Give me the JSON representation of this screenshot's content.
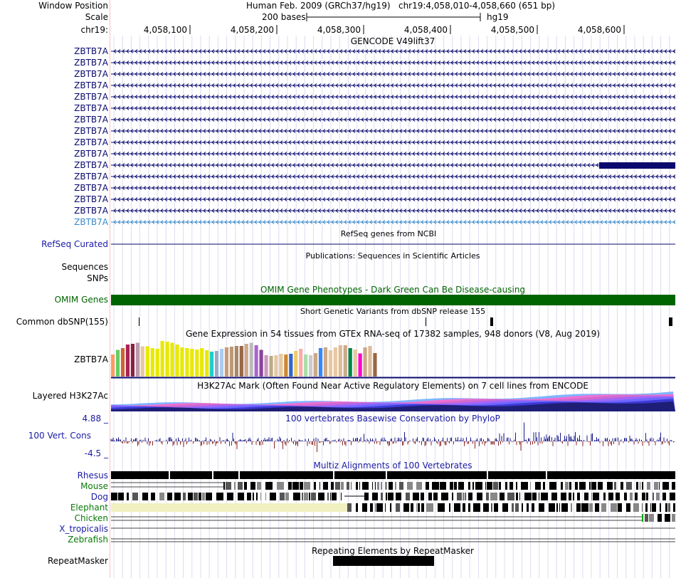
{
  "header": {
    "window_position_label": "Window Position",
    "scale_label": "Scale",
    "chrom_label": "chr19:",
    "assembly": "Human Feb. 2009 (GRCh37/hg19)",
    "position": "chr19:4,058,010-4,058,660 (651 bp)",
    "scale_text": "200 bases",
    "db": "hg19",
    "ruler_ticks": [
      "4,058,100",
      "4,058,200",
      "4,058,300",
      "4,058,400",
      "4,058,500",
      "4,058,600"
    ]
  },
  "gencode": {
    "title": "GENCODE V49lift37",
    "items": [
      "ZBTB7A",
      "ZBTB7A",
      "ZBTB7A",
      "ZBTB7A",
      "ZBTB7A",
      "ZBTB7A",
      "ZBTB7A",
      "ZBTB7A",
      "ZBTB7A",
      "ZBTB7A",
      "ZBTB7A",
      "ZBTB7A",
      "ZBTB7A",
      "ZBTB7A",
      "ZBTB7A",
      "ZBTB7A"
    ]
  },
  "refseq": {
    "title": "RefSeq genes from NCBI",
    "label": "RefSeq Curated"
  },
  "publications": {
    "title": "Publications: Sequences in Scientific Articles",
    "seq_label": "Sequences",
    "snp_label": "SNPs"
  },
  "omim": {
    "title": "OMIM Gene Phenotypes - Dark Green Can Be Disease-causing",
    "label": "OMIM Genes"
  },
  "dbsnp": {
    "title": "Short Genetic Variants from dbSNP release 155",
    "label": "Common dbSNP(155)"
  },
  "gtex": {
    "title": "Gene Expression in 54 tissues from GTEx RNA-seq of 17382 samples, 948 donors (V8, Aug 2019)",
    "label": "ZBTB7A",
    "levels": [
      0.62,
      0.75,
      0.8,
      0.9,
      0.92,
      0.95,
      0.85,
      0.85,
      0.8,
      0.78,
      1.0,
      0.98,
      0.95,
      0.9,
      0.82,
      0.8,
      0.78,
      0.76,
      0.8,
      0.74,
      0.7,
      0.72,
      0.78,
      0.82,
      0.84,
      0.86,
      0.86,
      0.92,
      0.95,
      0.88,
      0.75,
      0.6,
      0.58,
      0.6,
      0.64,
      0.62,
      0.64,
      0.72,
      0.78,
      0.62,
      0.6,
      0.66,
      0.8,
      0.82,
      0.74,
      0.82,
      0.88,
      0.88,
      0.8,
      0.76,
      0.65,
      0.82,
      0.86,
      0.66
    ],
    "colors": [
      "#ff9966",
      "#66cc66",
      "#cc6633",
      "#aa2255",
      "#882244",
      "#bb99aa",
      "#e8c8a0",
      "#e8e800",
      "#e8e800",
      "#e8e800",
      "#e8e800",
      "#e8e800",
      "#e8e800",
      "#e8e800",
      "#e8e800",
      "#e8e800",
      "#e8e800",
      "#e8e800",
      "#e8e800",
      "#e8e800",
      "#22cccc",
      "#99aacc",
      "#aaccee",
      "#cc9977",
      "#bb9977",
      "#aa8866",
      "#996644",
      "#ccaa88",
      "#bbbbbb",
      "#aa66cc",
      "#884499",
      "#cc99bb",
      "#bbaa88",
      "#e8c8a0",
      "#e8c8a0",
      "#cc8833",
      "#3366cc",
      "#eecc66",
      "#ffaaaa",
      "#aaddaa",
      "#cccccc",
      "#ccaa88",
      "#3388ff",
      "#ccaa88",
      "#e8c8a0",
      "#e8c8a0",
      "#ddbb99",
      "#ccaa88",
      "#008844",
      "#e8c8a0",
      "#ff00cc",
      "#ccaa88",
      "#ddbb99",
      "#996644"
    ]
  },
  "h3k27ac": {
    "title": "H3K27Ac Mark (Often Found Near Active Regulatory Elements) on 7 cell lines from ENCODE",
    "label": "Layered H3K27Ac"
  },
  "phylop": {
    "title": "100 vertebrates Basewise Conservation by PhyloP",
    "label": "100 Vert. Cons",
    "max_label": "4.88 _",
    "min_label": "-4.5 _"
  },
  "multiz": {
    "title": "Multiz Alignments of 100 Vertebrates",
    "species": [
      {
        "name": "Rhesus",
        "color": "#1a1aa6"
      },
      {
        "name": "Mouse",
        "color": "#0a7a0a"
      },
      {
        "name": "Dog",
        "color": "#1a1aa6"
      },
      {
        "name": "Elephant",
        "color": "#0a7a0a"
      },
      {
        "name": "Chicken",
        "color": "#0a7a0a"
      },
      {
        "name": "X_tropicalis",
        "color": "#1a1aa6"
      },
      {
        "name": "Zebrafish",
        "color": "#0a7a0a"
      }
    ]
  },
  "repeatmasker": {
    "title": "Repeating Elements by RepeatMasker",
    "label": "RepeatMasker"
  },
  "colors": {
    "gene_navy": "#0a0a6e",
    "gene_light": "#3a8ac8",
    "omim_green": "#006400",
    "track_blue": "#1a1aa6",
    "gtex_baseline": "#0a0a6e"
  }
}
